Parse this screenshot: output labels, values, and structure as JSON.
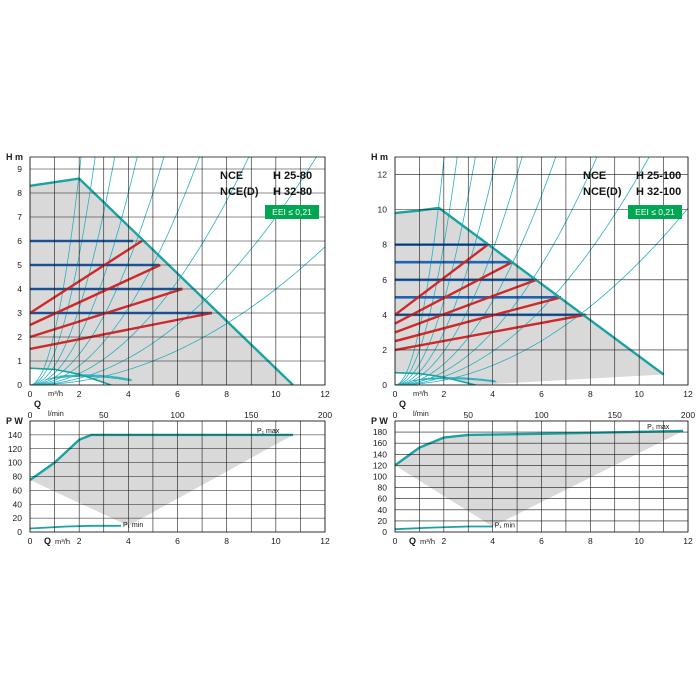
{
  "chart_data": [
    {
      "type": "line",
      "panel": "left-H",
      "model_lines": [
        {
          "name": "NCE",
          "code": "H 25-80"
        },
        {
          "name": "NCE(D)",
          "code": "H 32-80"
        }
      ],
      "badge": "EEI ≤ 0,21",
      "ylabel": "H m",
      "xlabel": "Q",
      "xunit": "m³/h",
      "xlim": [
        0,
        12
      ],
      "ylim": [
        0,
        9.5
      ],
      "xticks": [
        0,
        2,
        4,
        6,
        8,
        10,
        12
      ],
      "yticks": [
        0,
        1,
        2,
        3,
        4,
        5,
        6,
        7,
        8,
        9
      ],
      "secondary_x": {
        "unit": "l/min",
        "ticks": [
          0,
          50,
          100,
          150,
          200
        ]
      },
      "colors": {
        "envelope": "#1aa3a3",
        "fill": "#d9d9d9",
        "constant_pressure": "#1e64b4",
        "proportional_pressure": "#d02828",
        "system_curves": "#2ab0c0",
        "badge": "#00a651"
      },
      "envelope": {
        "x": [
          0,
          1,
          2,
          10.7
        ],
        "y": [
          8.3,
          8.45,
          8.6,
          0
        ]
      },
      "envelope_min": {
        "x": [
          0,
          1,
          2,
          3.3
        ],
        "y": [
          0.7,
          0.65,
          0.45,
          0
        ]
      },
      "constant_pressure_lines": [
        {
          "y": 6,
          "x": [
            0,
            4.2
          ]
        },
        {
          "y": 5,
          "x": [
            0,
            5.25
          ]
        },
        {
          "y": 4,
          "x": [
            0,
            6.2
          ]
        },
        {
          "y": 3,
          "x": [
            0,
            7.4
          ]
        }
      ],
      "proportional_pressure_lines": [
        {
          "x": [
            0,
            4.55
          ],
          "y": [
            3,
            6
          ]
        },
        {
          "x": [
            0,
            5.3
          ],
          "y": [
            2.5,
            5
          ]
        },
        {
          "x": [
            0,
            6.2
          ],
          "y": [
            2,
            4
          ]
        },
        {
          "x": [
            0,
            7.4
          ],
          "y": [
            1.5,
            3
          ]
        }
      ],
      "system_curve_k": [
        2.2,
        1.35,
        0.8,
        0.5,
        0.32,
        0.2,
        0.12,
        0.07,
        0.04
      ]
    },
    {
      "type": "line",
      "panel": "left-P",
      "ylabel": "P W",
      "xlabel": "Q",
      "xunit": "m³/h",
      "xlim": [
        0,
        12
      ],
      "ylim": [
        0,
        160
      ],
      "xticks": [
        0,
        2,
        4,
        6,
        8,
        10,
        12
      ],
      "yticks": [
        0,
        20,
        40,
        60,
        80,
        100,
        120,
        140
      ],
      "series": [
        {
          "name": "P₁ max",
          "x": [
            0,
            1,
            2,
            2.5,
            6,
            10.7
          ],
          "y": [
            75,
            100,
            133,
            140,
            140,
            140
          ]
        },
        {
          "name": "P₁ min",
          "x": [
            0,
            1.5,
            2.5,
            3.7
          ],
          "y": [
            5,
            8,
            9,
            9
          ]
        }
      ],
      "shaded_region": {
        "x": [
          0,
          1,
          2,
          2.5,
          6,
          10.7,
          4
        ],
        "y": [
          75,
          100,
          133,
          140,
          140,
          140,
          9
        ]
      }
    },
    {
      "type": "line",
      "panel": "right-H",
      "model_lines": [
        {
          "name": "NCE",
          "code": "H 25-100"
        },
        {
          "name": "NCE(D)",
          "code": "H 32-100"
        }
      ],
      "badge": "EEI ≤ 0,21",
      "ylabel": "H m",
      "xlabel": "Q",
      "xunit": "m³/h",
      "xlim": [
        0,
        12
      ],
      "ylim": [
        0,
        13
      ],
      "xticks": [
        0,
        2,
        4,
        6,
        8,
        10,
        12
      ],
      "yticks": [
        0,
        2,
        4,
        6,
        8,
        10,
        12
      ],
      "secondary_x": {
        "unit": "l/min",
        "ticks": [
          0,
          50,
          100,
          150,
          200
        ]
      },
      "colors": {
        "envelope": "#1aa3a3",
        "fill": "#d9d9d9",
        "constant_pressure": "#1e64b4",
        "proportional_pressure": "#d02828",
        "system_curves": "#2ab0c0",
        "badge": "#00a651"
      },
      "envelope": {
        "x": [
          0,
          1,
          1.8,
          11
        ],
        "y": [
          9.8,
          9.95,
          10.1,
          0.6
        ]
      },
      "envelope_min": {
        "x": [
          0,
          1,
          2,
          3.3
        ],
        "y": [
          0.7,
          0.65,
          0.45,
          0
        ]
      },
      "constant_pressure_lines": [
        {
          "y": 8,
          "x": [
            0,
            3.8
          ]
        },
        {
          "y": 7,
          "x": [
            0,
            4.8
          ]
        },
        {
          "y": 6,
          "x": [
            0,
            5.8
          ]
        },
        {
          "y": 5,
          "x": [
            0,
            6.8
          ]
        },
        {
          "y": 4,
          "x": [
            0,
            7.8
          ]
        }
      ],
      "proportional_pressure_lines": [
        {
          "x": [
            0,
            3.8
          ],
          "y": [
            4,
            8
          ]
        },
        {
          "x": [
            0,
            4.8
          ],
          "y": [
            3.5,
            7
          ]
        },
        {
          "x": [
            0,
            5.8
          ],
          "y": [
            3,
            6
          ]
        },
        {
          "x": [
            0,
            6.8
          ],
          "y": [
            2.5,
            5
          ]
        },
        {
          "x": [
            0,
            7.8
          ],
          "y": [
            2,
            4
          ]
        }
      ],
      "system_curve_k": [
        3.2,
        2.0,
        1.2,
        0.75,
        0.48,
        0.3,
        0.19,
        0.12,
        0.07
      ]
    },
    {
      "type": "line",
      "panel": "right-P",
      "ylabel": "P W",
      "xlabel": "Q",
      "xunit": "m³/h",
      "xlim": [
        0,
        12
      ],
      "ylim": [
        0,
        200
      ],
      "xticks": [
        0,
        2,
        4,
        6,
        8,
        10,
        12
      ],
      "yticks": [
        0,
        20,
        40,
        60,
        80,
        100,
        120,
        140,
        160,
        180
      ],
      "series": [
        {
          "name": "P₁ max",
          "x": [
            0,
            1,
            2,
            3,
            6,
            11.8
          ],
          "y": [
            120,
            152,
            170,
            175,
            177,
            182
          ]
        },
        {
          "name": "P₁ min",
          "x": [
            0,
            1.5,
            3,
            4
          ],
          "y": [
            5,
            8,
            10,
            10
          ]
        }
      ],
      "shaded_region": {
        "x": [
          0,
          1,
          2,
          3,
          6,
          11.8,
          4
        ],
        "y": [
          120,
          152,
          170,
          175,
          177,
          182,
          10
        ]
      }
    }
  ]
}
